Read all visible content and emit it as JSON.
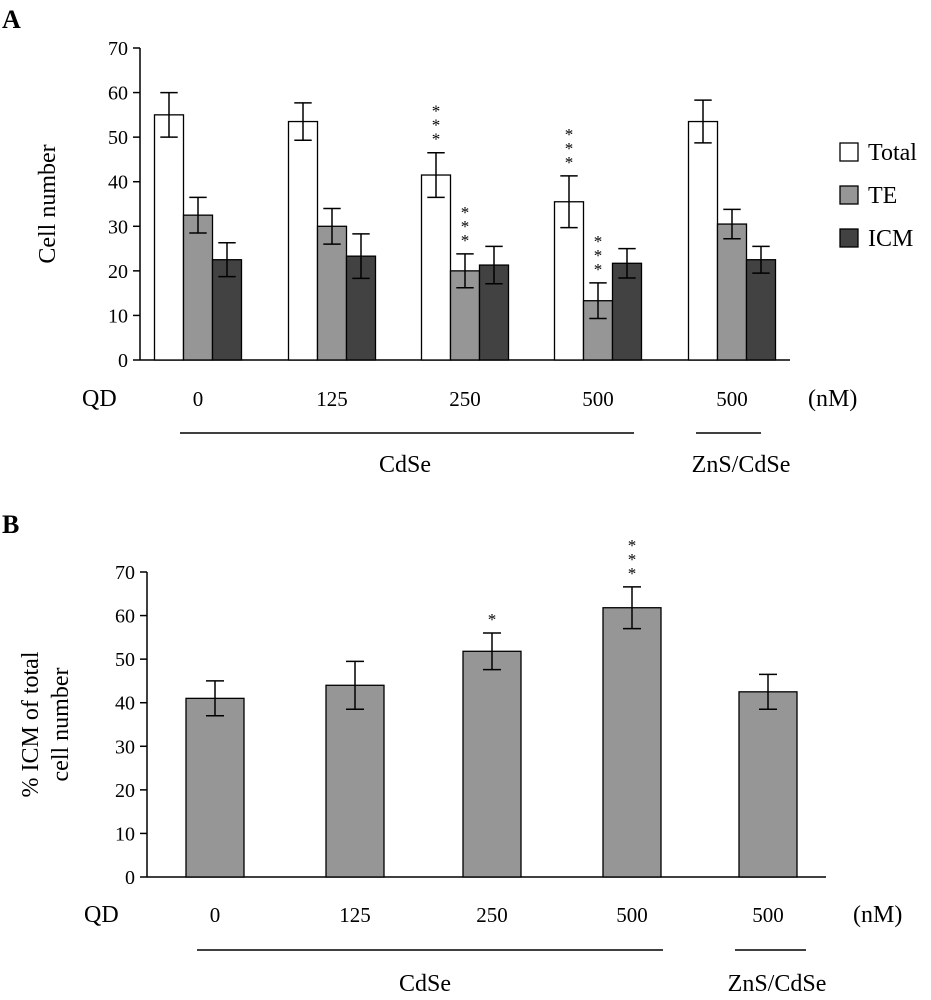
{
  "chart_data": [
    {
      "panel": "A",
      "type": "bar",
      "ylabel": "Cell number",
      "ylim": [
        0,
        70
      ],
      "yticks": [
        0,
        10,
        20,
        30,
        40,
        50,
        60,
        70
      ],
      "x_axis_prefix": "QD",
      "x_unit": "(nM)",
      "categories": [
        "0",
        "125",
        "250",
        "500",
        "500"
      ],
      "category_groups": [
        {
          "label": "CdSe",
          "categories": [
            0,
            1,
            2,
            3
          ]
        },
        {
          "label": "ZnS/CdSe",
          "categories": [
            4
          ]
        }
      ],
      "legend_position": "right",
      "series": [
        {
          "name": "Total",
          "color": "#ffffff",
          "values": [
            55,
            53.5,
            41.5,
            35.5,
            53.5
          ],
          "errors": [
            5,
            4.2,
            5,
            5.8,
            4.8
          ],
          "significance": [
            "",
            "",
            "***",
            "***",
            ""
          ]
        },
        {
          "name": "TE",
          "color": "#969696",
          "values": [
            32.5,
            30,
            20,
            13.3,
            30.5
          ],
          "errors": [
            4,
            4,
            3.8,
            4,
            3.3
          ],
          "significance": [
            "",
            "",
            "***",
            "***",
            ""
          ]
        },
        {
          "name": "ICM",
          "color": "#424242",
          "values": [
            22.5,
            23.3,
            21.3,
            21.7,
            22.5
          ],
          "errors": [
            3.8,
            5,
            4.2,
            3.3,
            3
          ]
        }
      ]
    },
    {
      "panel": "B",
      "type": "bar",
      "ylabel": "% ICM of total cell number",
      "ylabel_lines": [
        "% ICM of total",
        "cell number"
      ],
      "ylim": [
        0,
        70
      ],
      "yticks": [
        0,
        10,
        20,
        30,
        40,
        50,
        60,
        70
      ],
      "x_axis_prefix": "QD",
      "x_unit": "(nM)",
      "categories": [
        "0",
        "125",
        "250",
        "500",
        "500"
      ],
      "category_groups": [
        {
          "label": "CdSe",
          "categories": [
            0,
            1,
            2,
            3
          ]
        },
        {
          "label": "ZnS/CdSe",
          "categories": [
            4
          ]
        }
      ],
      "series": [
        {
          "color": "#969696",
          "values": [
            41,
            44,
            51.8,
            61.8,
            42.5
          ],
          "errors": [
            4,
            5.5,
            4.2,
            4.8,
            4
          ],
          "significance": [
            "",
            "",
            "*",
            "***",
            ""
          ]
        }
      ]
    }
  ]
}
